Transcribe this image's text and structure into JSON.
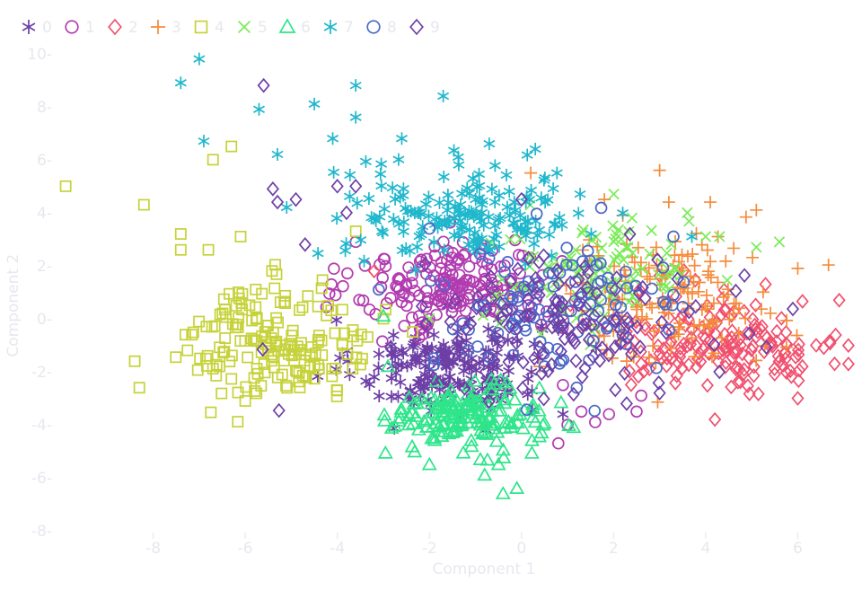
{
  "chart_data": {
    "type": "scatter",
    "title": "",
    "xlabel": "Component 1",
    "ylabel": "Component 2",
    "xlim": [
      -10.0,
      7.2
    ],
    "ylim": [
      -8.3,
      10.5
    ],
    "xticks": [
      -8,
      -6,
      -4,
      -2,
      0,
      2,
      4,
      6
    ],
    "yticks": [
      -8,
      -6,
      -4,
      -2,
      0,
      2,
      4,
      6,
      8,
      10
    ],
    "xtick_labels": [
      "-8",
      "-6",
      "-4",
      "-2",
      "0",
      "2",
      "4",
      "6"
    ],
    "ytick_labels": [
      "-8-",
      "-6-",
      "-4-",
      "-2-",
      "0-",
      "2-",
      "4-",
      "6-",
      "8-",
      "10-"
    ],
    "grid": false,
    "legend_position": "top-left, horizontal",
    "series": [
      {
        "name": "0",
        "label": "0",
        "marker": "asterisk",
        "color": "#6d3fa6",
        "center": [
          -1.6,
          -1.8
        ],
        "spread": [
          1.0,
          0.9
        ],
        "count": 180,
        "extra": [
          [
            -0.3,
            -2.8
          ],
          [
            -3.2,
            -2.2
          ],
          [
            0.9,
            -3.6
          ],
          [
            -0.5,
            0.0
          ],
          [
            0.8,
            -0.4
          ],
          [
            -2.6,
            -1.2
          ]
        ]
      },
      {
        "name": "1",
        "label": "1",
        "marker": "circle",
        "color": "#b13bb0",
        "center": [
          -1.4,
          1.2
        ],
        "spread": [
          1.1,
          0.9
        ],
        "count": 180,
        "extra": [
          [
            0.8,
            -4.7
          ],
          [
            1.6,
            -3.9
          ],
          [
            1.9,
            -3.6
          ],
          [
            2.5,
            -3.5
          ],
          [
            1.3,
            -3.5
          ],
          [
            0.9,
            -2.5
          ],
          [
            -3.6,
            2.9
          ],
          [
            -3.4,
            2.0
          ],
          [
            2.6,
            -2.9
          ],
          [
            1.0,
            -4.0
          ]
        ]
      },
      {
        "name": "2",
        "label": "2",
        "marker": "diamond",
        "color": "#f0506e",
        "center": [
          4.4,
          -0.9
        ],
        "spread": [
          1.3,
          0.9
        ],
        "count": 170,
        "extra": [
          [
            6.9,
            0.7
          ],
          [
            6.8,
            -1.7
          ],
          [
            6.1,
            -1.8
          ],
          [
            5.3,
            1.3
          ],
          [
            6.0,
            -3.0
          ],
          [
            4.2,
            -3.8
          ],
          [
            -3.2,
            1.8
          ],
          [
            2.6,
            -1.7
          ],
          [
            3.7,
            -0.4
          ],
          [
            6.4,
            -1.0
          ]
        ]
      },
      {
        "name": "3",
        "label": "3",
        "marker": "plus",
        "color": "#f58c3c",
        "center": [
          3.2,
          0.8
        ],
        "spread": [
          1.2,
          1.2
        ],
        "count": 150,
        "extra": [
          [
            3.0,
            5.6
          ],
          [
            0.2,
            5.5
          ],
          [
            5.1,
            4.1
          ],
          [
            6.0,
            1.9
          ],
          [
            4.1,
            4.4
          ],
          [
            3.2,
            4.4
          ],
          [
            0.4,
            -1.8
          ],
          [
            2.2,
            3.9
          ],
          [
            1.8,
            4.5
          ]
        ]
      },
      {
        "name": "4",
        "label": "4",
        "marker": "square",
        "color": "#c6d23a",
        "center": [
          -5.2,
          -0.8
        ],
        "spread": [
          1.0,
          1.1
        ],
        "count": 170,
        "extra": [
          [
            -9.9,
            5.0
          ],
          [
            -8.2,
            4.3
          ],
          [
            -6.3,
            6.5
          ],
          [
            -6.7,
            6.0
          ],
          [
            -7.4,
            3.2
          ],
          [
            -8.4,
            -1.6
          ],
          [
            -8.3,
            -2.6
          ],
          [
            -6.0,
            -3.1
          ],
          [
            -7.3,
            -0.6
          ],
          [
            -7.4,
            2.6
          ],
          [
            -6.8,
            2.6
          ],
          [
            -6.1,
            3.1
          ],
          [
            -3.6,
            3.3
          ]
        ]
      },
      {
        "name": "5",
        "label": "5",
        "marker": "cross",
        "color": "#79ec58",
        "center": [
          1.6,
          1.6
        ],
        "spread": [
          1.1,
          1.1
        ],
        "count": 110,
        "extra": [
          [
            5.1,
            2.7
          ],
          [
            5.6,
            2.9
          ],
          [
            4.3,
            3.1
          ],
          [
            4.0,
            3.1
          ],
          [
            3.6,
            4.0
          ],
          [
            2.4,
            3.8
          ],
          [
            -2.0,
            0.0
          ],
          [
            -0.5,
            0.8
          ]
        ]
      },
      {
        "name": "6",
        "label": "6",
        "marker": "triangle",
        "color": "#2ee58a",
        "center": [
          -1.2,
          -3.7
        ],
        "spread": [
          0.8,
          0.6
        ],
        "count": 170,
        "extra": [
          [
            -0.4,
            -6.6
          ],
          [
            -0.1,
            -6.4
          ],
          [
            -2.0,
            -5.5
          ],
          [
            -0.8,
            -5.9
          ],
          [
            -0.5,
            -5.5
          ],
          [
            0.3,
            -3.9
          ],
          [
            -3.0,
            0.1
          ],
          [
            -2.9,
            -1.8
          ]
        ]
      },
      {
        "name": "7",
        "label": "7",
        "marker": "asterisk",
        "color": "#1fb7cc",
        "center": [
          -1.2,
          4.0
        ],
        "spread": [
          1.3,
          0.9
        ],
        "count": 170,
        "extra": [
          [
            -7.0,
            9.8
          ],
          [
            -7.4,
            8.9
          ],
          [
            -5.7,
            7.9
          ],
          [
            -4.5,
            8.1
          ],
          [
            -3.6,
            8.8
          ],
          [
            -1.7,
            8.4
          ],
          [
            -3.6,
            7.6
          ],
          [
            -6.9,
            6.7
          ],
          [
            -5.3,
            6.2
          ],
          [
            -4.1,
            6.8
          ],
          [
            -2.6,
            6.8
          ],
          [
            -0.7,
            6.6
          ],
          [
            0.3,
            6.4
          ],
          [
            -5.1,
            4.2
          ],
          [
            3.7,
            3.1
          ]
        ]
      },
      {
        "name": "8",
        "label": "8",
        "marker": "circle",
        "color": "#4a69c9",
        "center": [
          0.8,
          0.2
        ],
        "spread": [
          1.4,
          1.2
        ],
        "count": 110,
        "extra": [
          [
            1.2,
            -2.6
          ],
          [
            3.3,
            3.1
          ],
          [
            -2.0,
            3.4
          ],
          [
            -3.1,
            1.1
          ],
          [
            0.5,
            -1.8
          ]
        ]
      },
      {
        "name": "9",
        "label": "9",
        "marker": "diamond",
        "color": "#6d3fa6",
        "center": [
          1.0,
          -0.1
        ],
        "spread": [
          1.6,
          1.2
        ],
        "count": 130,
        "extra": [
          [
            -5.6,
            8.8
          ],
          [
            -5.4,
            4.9
          ],
          [
            -4.0,
            5.0
          ],
          [
            -3.6,
            5.0
          ],
          [
            -5.3,
            4.4
          ],
          [
            -4.9,
            4.5
          ],
          [
            -4.7,
            2.8
          ],
          [
            0.0,
            4.5
          ],
          [
            3.0,
            -2.8
          ],
          [
            4.3,
            -2.0
          ],
          [
            -3.8,
            4.0
          ]
        ]
      }
    ]
  }
}
